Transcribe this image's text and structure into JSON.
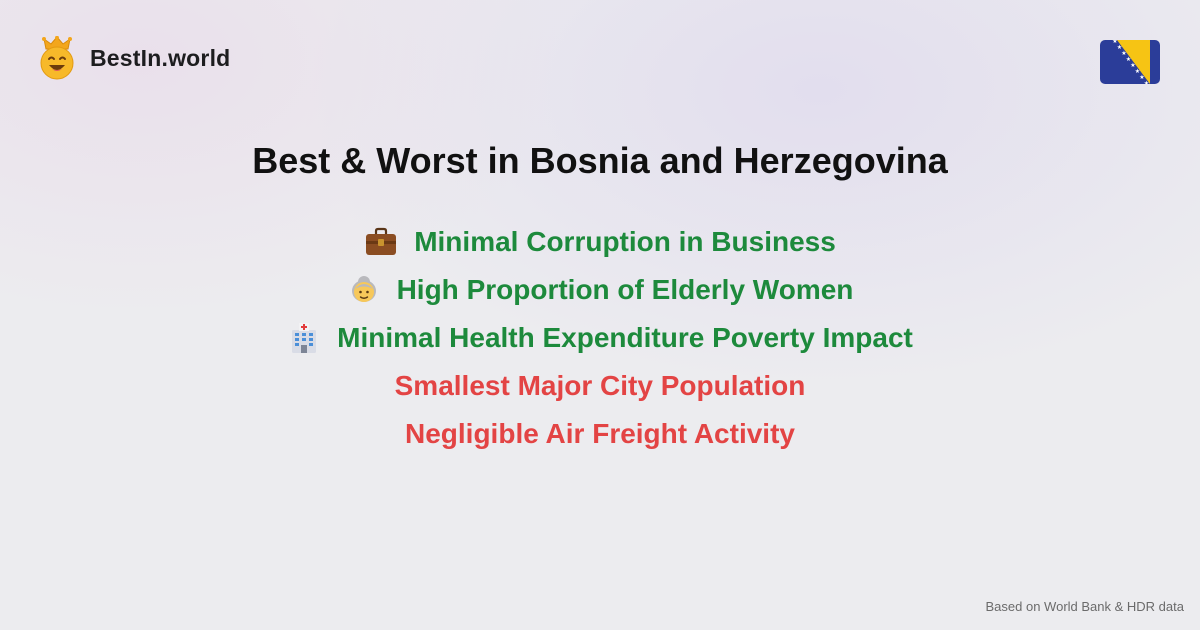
{
  "brand": {
    "name": "BestIn.world",
    "logo_icon": "crowned-smiley-icon"
  },
  "flag": {
    "icon": "bosnia-and-herzegovina-flag-icon",
    "colors": {
      "blue": "#2b3d99",
      "yellow": "#f6c414",
      "star": "#ffffff"
    }
  },
  "title": "Best & Worst in Bosnia and Herzegovina",
  "facts": [
    {
      "text": "Minimal Corruption in Business",
      "kind": "best",
      "icon": "briefcase-icon"
    },
    {
      "text": "High Proportion of Elderly Women",
      "kind": "best",
      "icon": "old-woman-icon"
    },
    {
      "text": "Minimal Health Expenditure Poverty Impact",
      "kind": "best",
      "icon": "hospital-icon"
    },
    {
      "text": "Smallest Major City Population",
      "kind": "worst",
      "icon": ""
    },
    {
      "text": "Negligible Air Freight Activity",
      "kind": "worst",
      "icon": ""
    }
  ],
  "colors": {
    "best": "#1d8a3c",
    "worst": "#e34444",
    "title": "#111111"
  },
  "footer": {
    "source_note": "Based on World Bank & HDR data"
  }
}
